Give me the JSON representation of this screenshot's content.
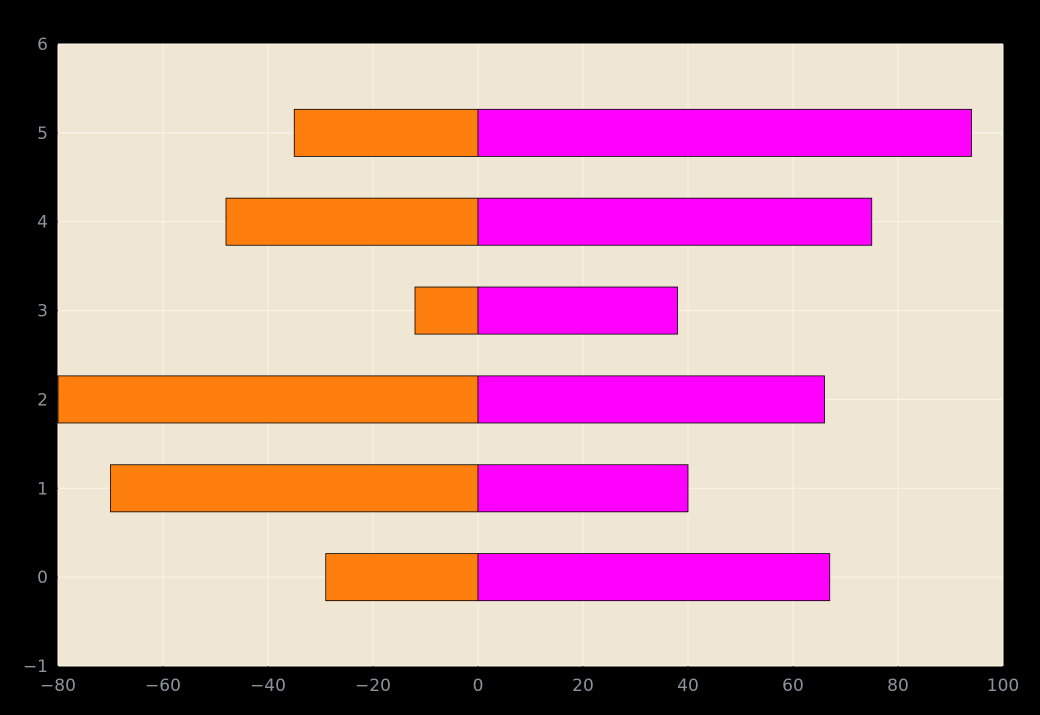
{
  "chart_data": {
    "type": "bar",
    "orientation": "horizontal",
    "stacked": "diverging",
    "categories": [
      0,
      1,
      2,
      3,
      4,
      5
    ],
    "series": [
      {
        "values": [
          -29,
          -70,
          -80,
          -12,
          -48,
          -35
        ],
        "color": "#ff7f0e"
      },
      {
        "values": [
          67,
          40,
          66,
          38,
          75,
          94
        ],
        "color": "#ff00ff"
      }
    ],
    "xlim": [
      -80,
      100
    ],
    "ylim": [
      -1,
      6
    ],
    "xticks": [
      -80,
      -60,
      -40,
      -20,
      0,
      20,
      40,
      60,
      80,
      100
    ],
    "yticks": [
      -1,
      0,
      1,
      2,
      3,
      4,
      5,
      6
    ],
    "xtick_labels": [
      "−80",
      "−60",
      "−40",
      "−20",
      "0",
      "20",
      "40",
      "60",
      "80",
      "100"
    ],
    "ytick_labels": [
      "−1",
      "0",
      "1",
      "2",
      "3",
      "4",
      "5",
      "6"
    ],
    "grid": true,
    "background": "#000000",
    "plot_background": "#efe7d4",
    "grid_color": "#fbf6ea",
    "tick_color": "#8a939b"
  }
}
